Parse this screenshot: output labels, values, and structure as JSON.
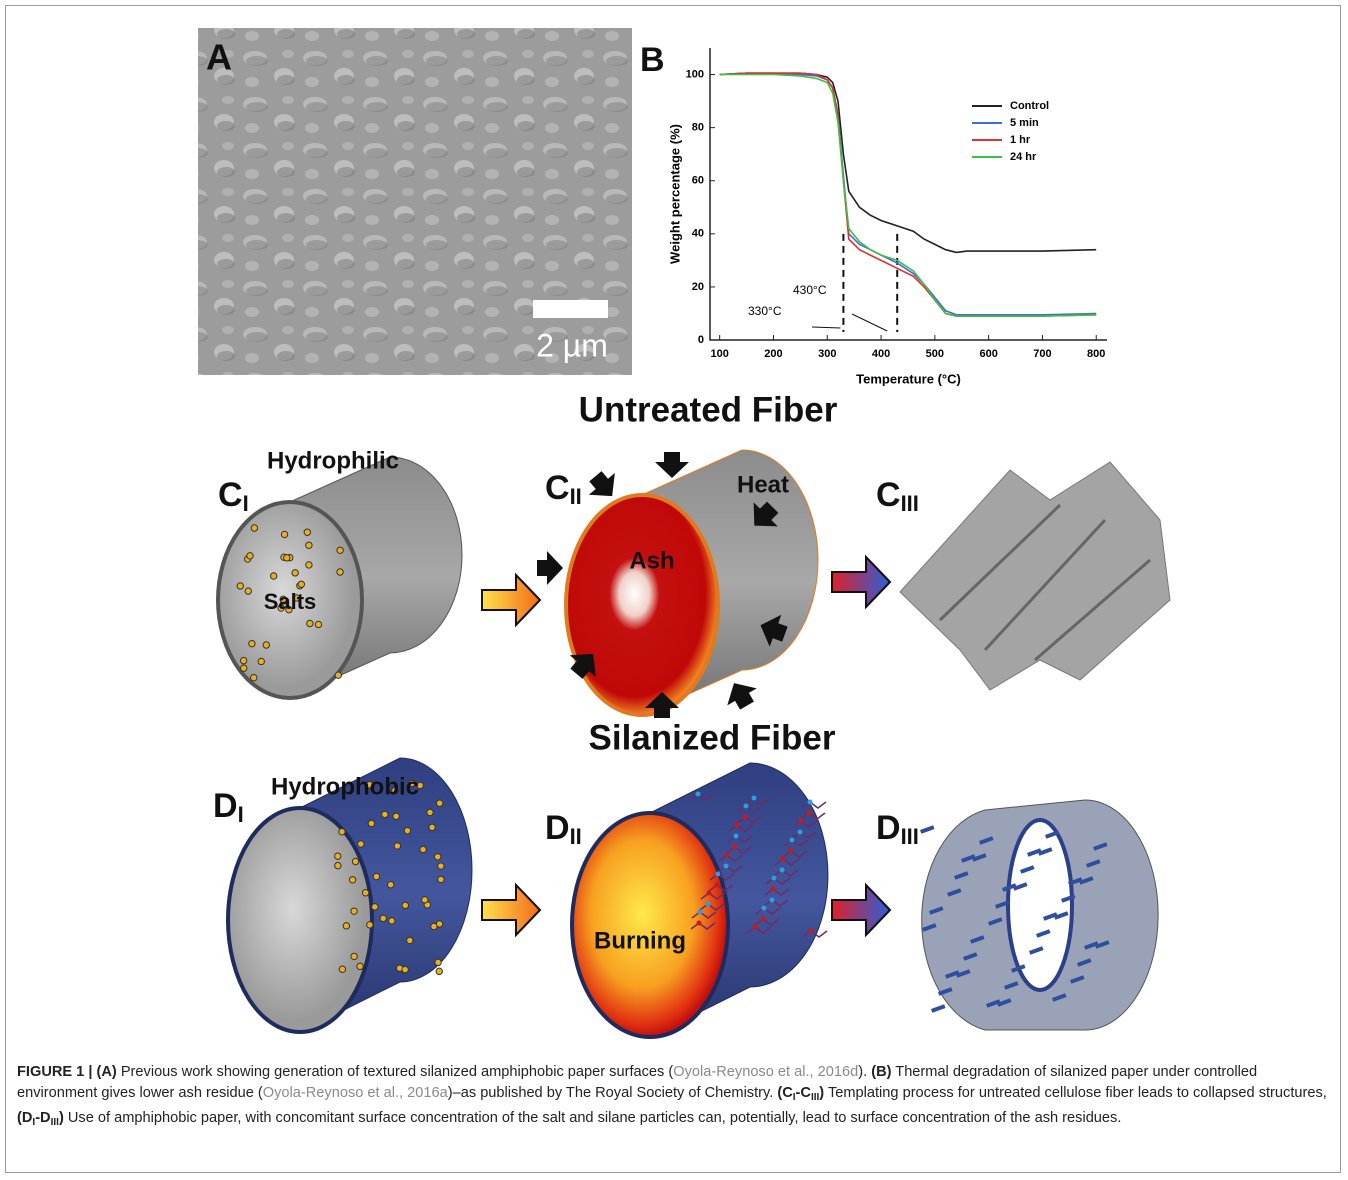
{
  "panel_a": {
    "letter": "A",
    "scale_bar": "2 µm"
  },
  "chart_data": {
    "type": "line",
    "letter": "B",
    "xlabel": "Temperature (°C)",
    "ylabel": "Weight percentage (%)",
    "x": [
      100,
      150,
      200,
      250,
      280,
      300,
      310,
      320,
      330,
      340,
      360,
      380,
      400,
      430,
      460,
      480,
      500,
      520,
      540,
      560,
      600,
      700,
      800
    ],
    "series": [
      {
        "name": "Control",
        "color": "#222222",
        "values": [
          100,
          100.5,
          100.5,
          100.5,
          100,
          99,
          97,
          90,
          70,
          56,
          50,
          47,
          45,
          43,
          41,
          38,
          36,
          34,
          33,
          33.5,
          33.5,
          33.5,
          34
        ]
      },
      {
        "name": "5 min",
        "color": "#3a6fd8",
        "values": [
          100,
          100.5,
          100.5,
          100,
          99.5,
          98,
          95,
          85,
          62,
          40,
          36,
          34,
          32,
          29,
          25,
          21,
          16,
          11,
          9.5,
          9.5,
          9.5,
          9.5,
          10
        ]
      },
      {
        "name": "1 hr",
        "color": "#e03030",
        "values": [
          100,
          100.5,
          100.5,
          100.5,
          100,
          98,
          95,
          84,
          60,
          38,
          34,
          32,
          30,
          27,
          24,
          20,
          15,
          10,
          9,
          9,
          9,
          9,
          9.5
        ]
      },
      {
        "name": "24 hr",
        "color": "#3fbf3f",
        "values": [
          100,
          100,
          100,
          99.5,
          98.5,
          97,
          93,
          82,
          60,
          42,
          37,
          34,
          32,
          30,
          26,
          21,
          15,
          10,
          9,
          9,
          9,
          9,
          9.5
        ]
      }
    ],
    "xlim": [
      82,
      820
    ],
    "ylim": [
      0,
      110
    ],
    "xticks": [
      100,
      200,
      300,
      400,
      500,
      600,
      700,
      800
    ],
    "yticks": [
      0,
      20,
      40,
      60,
      80,
      100
    ],
    "vlines": [
      330,
      430
    ],
    "annotations": [
      "330°C",
      "430°C"
    ],
    "legend": "upper right"
  },
  "untreated": {
    "title": "Untreated Fiber",
    "c1": {
      "letter": "C",
      "sub": "I",
      "property": "Hydrophilic",
      "label": "Salts"
    },
    "c2": {
      "letter": "C",
      "sub": "II",
      "heat": "Heat",
      "label": "Ash"
    },
    "c3": {
      "letter": "C",
      "sub": "III"
    }
  },
  "silanized": {
    "title": "Silanized Fiber",
    "d1": {
      "letter": "D",
      "sub": "I",
      "property": "Hydrophobic"
    },
    "d2": {
      "letter": "D",
      "sub": "II",
      "label": "Burning"
    },
    "d3": {
      "letter": "D",
      "sub": "III"
    }
  },
  "caption": [
    {
      "text": "FIGURE 1 | (A)",
      "style": "bold"
    },
    {
      "text": " Previous work showing generation of textured silanized amphiphobic paper surfaces (",
      "style": "plain"
    },
    {
      "text": "Oyola-Reynoso et al., 2016d",
      "style": "link"
    },
    {
      "text": "). ",
      "style": "plain"
    },
    {
      "text": "(B)",
      "style": "bold"
    },
    {
      "text": " Thermal degradation of silanized paper under controlled environment gives lower ash residue (",
      "style": "plain"
    },
    {
      "text": "Oyola-Reynoso et al., 2016a",
      "style": "link"
    },
    {
      "text": ")–as published by The Royal Society of Chemistry. ",
      "style": "plain"
    },
    {
      "text": "(C",
      "style": "bold"
    },
    {
      "text": "I",
      "style": "sub"
    },
    {
      "text": "-C",
      "style": "bold"
    },
    {
      "text": "III",
      "style": "sub"
    },
    {
      "text": ")",
      "style": "bold"
    },
    {
      "text": " Templating process for untreated cellulose fiber leads to collapsed structures, ",
      "style": "plain"
    },
    {
      "text": "(D",
      "style": "bold"
    },
    {
      "text": "I",
      "style": "sub"
    },
    {
      "text": "-D",
      "style": "bold"
    },
    {
      "text": "III",
      "style": "sub"
    },
    {
      "text": ")",
      "style": "bold"
    },
    {
      "text": " Use of amphiphobic paper, with concomitant surface concentration of the salt and silane particles can, potentially, lead to surface concentration of the ash residues.",
      "style": "plain"
    }
  ]
}
